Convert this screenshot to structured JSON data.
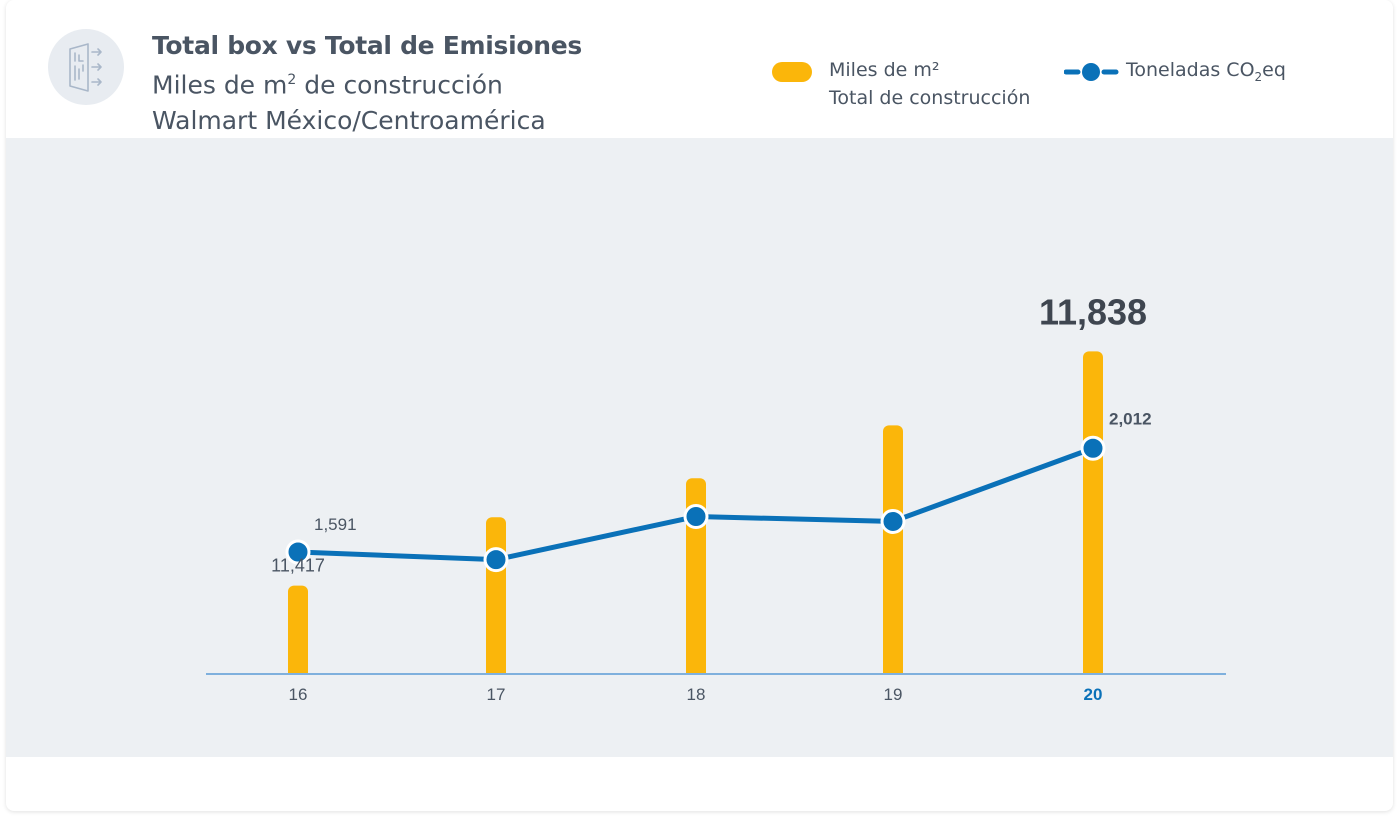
{
  "header": {
    "title": "Total box vs Total de Emisiones",
    "subtitle_line1_a": "Miles de m",
    "subtitle_line1_sup": "2",
    "subtitle_line1_b": " de construcción",
    "subtitle_line2": "Walmart México/Centroamérica",
    "icon": "door-exit-icon"
  },
  "legend": {
    "bars_line1": "Miles de m²",
    "bars_line2": "Total de construcción",
    "line_a": "Toneladas CO",
    "line_sub": "2",
    "line_b": "eq"
  },
  "colors": {
    "bar": "#fbb60a",
    "line": "#0a71b8",
    "axis": "#7fb0dd",
    "plot_bg": "#edf0f3",
    "text": "#4a5563",
    "highlight": "#0a71b8"
  },
  "chart_data": {
    "type": "bar+line",
    "categories": [
      "16",
      "17",
      "18",
      "19",
      "20"
    ],
    "highlight_category": "20",
    "series": [
      {
        "name": "Miles de m² Total de construcción",
        "type": "bar",
        "values": [
          11417,
          11540,
          11610,
          11705,
          11838
        ],
        "labels": [
          "11,417",
          "",
          "",
          "",
          "11,838"
        ]
      },
      {
        "name": "Toneladas CO2eq",
        "type": "line",
        "values": [
          1591,
          1560,
          1735,
          1715,
          2012
        ],
        "labels": [
          "1,591",
          "",
          "",
          "",
          "2,012"
        ]
      }
    ],
    "bar_axis_range": [
      11260,
      11880
    ],
    "line_axis_range": [
      1100,
      2500
    ],
    "grid": false
  }
}
